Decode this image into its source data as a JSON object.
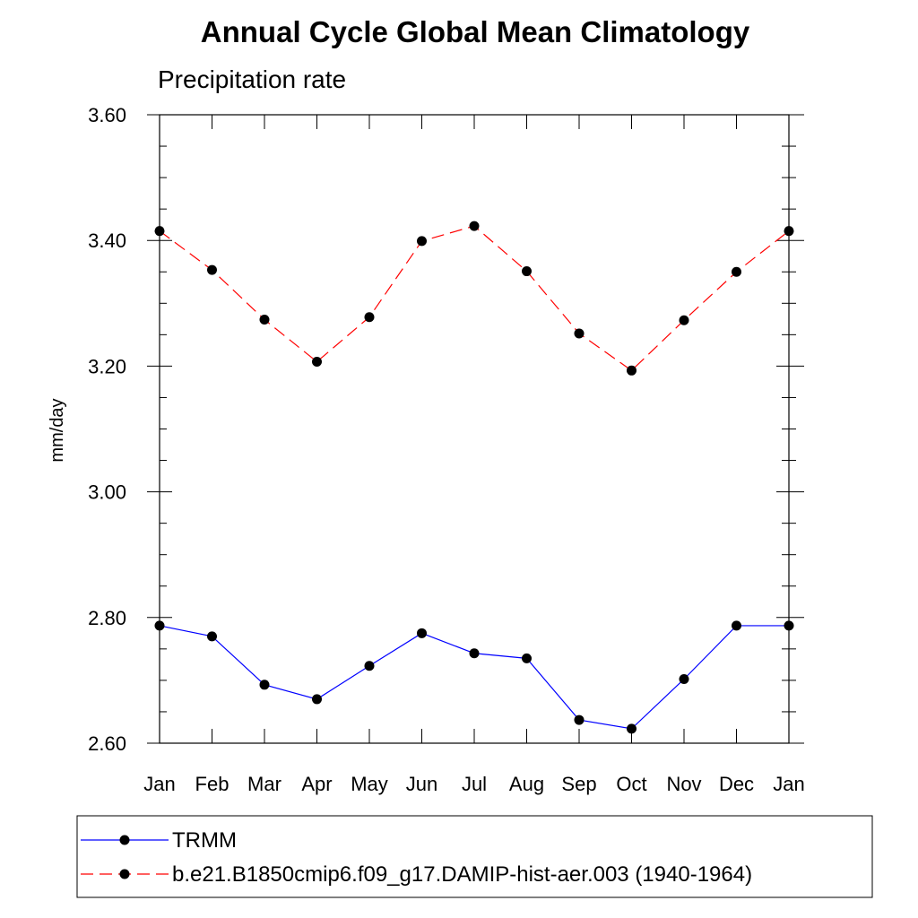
{
  "chart_data": {
    "type": "line",
    "title": "Annual Cycle Global Mean Climatology",
    "subtitle": "Precipitation rate",
    "xlabel": "",
    "ylabel": "mm/day",
    "ylim": [
      2.6,
      3.6
    ],
    "yticks": [
      "2.60",
      "2.80",
      "3.00",
      "3.20",
      "3.40",
      "3.60"
    ],
    "categories": [
      "Jan",
      "Feb",
      "Mar",
      "Apr",
      "May",
      "Jun",
      "Jul",
      "Aug",
      "Sep",
      "Oct",
      "Nov",
      "Dec",
      "Jan"
    ],
    "grid": false,
    "legend_placement": "bottom",
    "series": [
      {
        "name": "TRMM",
        "color": "#0000ff",
        "line_style": "solid",
        "marker": "filled-circle",
        "values": [
          2.787,
          2.77,
          2.693,
          2.67,
          2.723,
          2.775,
          2.743,
          2.735,
          2.637,
          2.623,
          2.702,
          2.787,
          2.787
        ]
      },
      {
        "name": "b.e21.B1850cmip6.f09_g17.DAMIP-hist-aer.003 (1940-1964)",
        "color": "#ff0000",
        "line_style": "dashed",
        "marker": "filled-circle",
        "values": [
          3.415,
          3.353,
          3.274,
          3.207,
          3.278,
          3.399,
          3.423,
          3.351,
          3.252,
          3.193,
          3.273,
          3.35,
          3.415
        ]
      }
    ]
  }
}
